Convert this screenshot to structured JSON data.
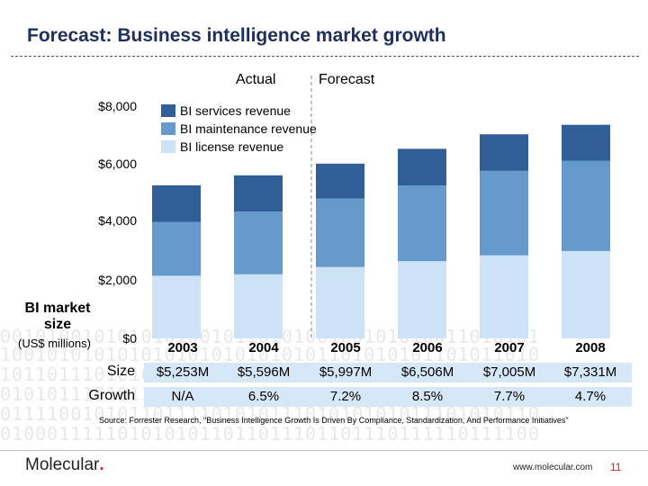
{
  "title": "Forecast: Business intelligence market growth",
  "phase_labels": {
    "actual": "Actual",
    "forecast": "Forecast"
  },
  "side_label": {
    "title": "BI market size",
    "unit": "(US$ millions)"
  },
  "row_labels": {
    "size": "Size",
    "growth": "Growth"
  },
  "table": {
    "sizes": [
      "$5,253M",
      "$5,596M",
      "$5,997M",
      "$6,506M",
      "$7,005M",
      "$7,331M"
    ],
    "growth": [
      "N/A",
      "6.5%",
      "7.2%",
      "8.5%",
      "7.7%",
      "4.7%"
    ]
  },
  "source": "Source: Forrester Research, \"Business Intelligence Growth Is Driven By Compliance, Standardization, And Performance Initiatives\"",
  "footer": {
    "logo": "Molecular",
    "logo_dot": ".",
    "url": "www.molecular.com",
    "page": "11"
  },
  "decor": {
    "binary_rows": [
      "0010100101010101001011010100100101010011010101",
      "1001010101010101010101010101101010101101011010",
      "1011011101010101010101011101010100101011101010",
      "0101011101011010101101011001010101110101011101",
      "0111100101011011110101011101010101011101010110",
      "0100011111010101011011011101101110111110111100"
    ]
  },
  "colors": {
    "services": "#2f5f96",
    "maintenance": "#6699cc",
    "license": "#cce3f7",
    "title": "#1f2f5c",
    "table_bg": "#d6e8f8"
  },
  "chart_data": {
    "type": "bar",
    "stacked": true,
    "title": "",
    "categories": [
      "2003",
      "2004",
      "2005",
      "2006",
      "2007",
      "2008"
    ],
    "series": [
      {
        "name": "BI license revenue",
        "values": [
          2150,
          2200,
          2450,
          2650,
          2850,
          3000
        ]
      },
      {
        "name": "BI maintenance revenue",
        "values": [
          1850,
          2150,
          2350,
          2600,
          2900,
          3100
        ]
      },
      {
        "name": "BI services revenue",
        "values": [
          1253,
          1246,
          1197,
          1256,
          1255,
          1231
        ]
      }
    ],
    "xlabel": "",
    "ylabel": "BI market size (US$ millions)",
    "yticks": [
      "$8,000",
      "$6,000",
      "$4,000",
      "$2,000",
      "$0"
    ],
    "ytick_values": [
      8000,
      6000,
      4000,
      2000,
      0
    ],
    "ylim": [
      0,
      8000
    ],
    "legend_position": "top-left",
    "annotations": [
      "Actual",
      "Forecast"
    ]
  }
}
